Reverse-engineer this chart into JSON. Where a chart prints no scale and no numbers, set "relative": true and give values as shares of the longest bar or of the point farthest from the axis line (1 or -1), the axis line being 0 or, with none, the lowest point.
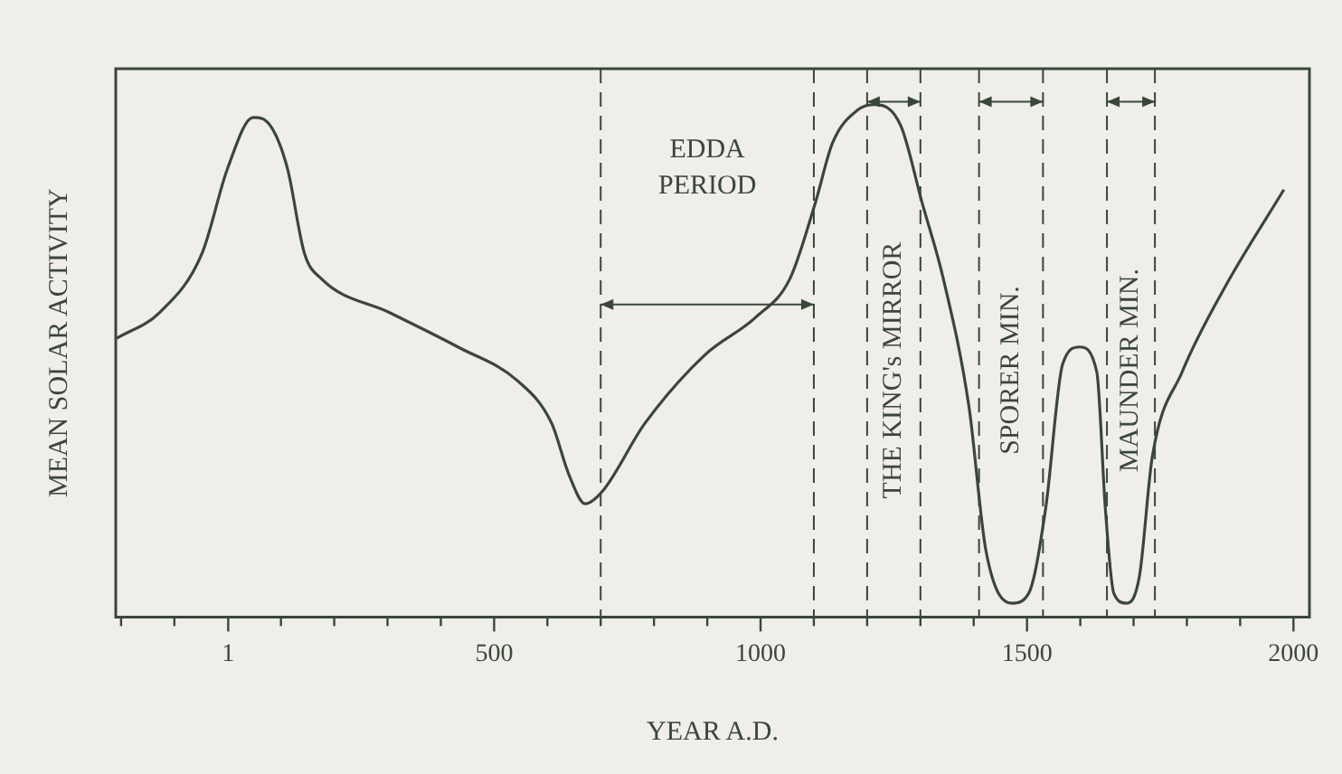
{
  "chart_data": {
    "type": "line",
    "xlabel": "YEAR A.D.",
    "ylabel": "MEAN SOLAR ACTIVITY",
    "relative": true,
    "color": "#3b463b",
    "x": [
      -208,
      -128,
      -48,
      0,
      48,
      80,
      112,
      144,
      176,
      304,
      432,
      544,
      608,
      640,
      671,
      703,
      783,
      895,
      991,
      1055,
      1103,
      1135,
      1183,
      1215,
      1263,
      1303,
      1343,
      1391,
      1423,
      1471,
      1503,
      1535,
      1567,
      1599,
      1631,
      1647,
      1663,
      1687,
      1711,
      1735,
      1791,
      1871,
      1982
    ],
    "values": [
      0.544,
      0.594,
      0.71,
      0.876,
      0.975,
      0.959,
      0.876,
      0.71,
      0.66,
      0.594,
      0.527,
      0.461,
      0.378,
      0.279,
      0.221,
      0.245,
      0.378,
      0.511,
      0.585,
      0.66,
      0.809,
      0.925,
      0.99,
      1.0,
      0.959,
      0.809,
      0.66,
      0.411,
      0.129,
      0.027,
      0.046,
      0.212,
      0.494,
      0.527,
      0.478,
      0.212,
      0.046,
      0.027,
      0.08,
      0.312,
      0.478,
      0.643,
      0.834
    ],
    "xlim": [
      -210,
      2030
    ],
    "xticks": [
      {
        "value": -200,
        "label": null
      },
      {
        "value": -100,
        "label": null
      },
      1,
      {
        "value": 100,
        "label": null
      },
      {
        "value": 200,
        "label": null
      },
      {
        "value": 300,
        "label": null
      },
      {
        "value": 400,
        "label": null
      },
      500,
      {
        "value": 600,
        "label": null
      },
      {
        "value": 700,
        "label": null
      },
      {
        "value": 800,
        "label": null
      },
      {
        "value": 900,
        "label": null
      },
      1000,
      {
        "value": 1100,
        "label": null
      },
      {
        "value": 1200,
        "label": null
      },
      {
        "value": 1300,
        "label": null
      },
      {
        "value": 1400,
        "label": null
      },
      1500,
      {
        "value": 1600,
        "label": null
      },
      {
        "value": 1700,
        "label": null
      },
      {
        "value": 1800,
        "label": null
      },
      {
        "value": 1900,
        "label": null
      },
      2000
    ],
    "ref_lines": [
      {
        "axis": "x",
        "value": 700,
        "line_style": "dashed"
      },
      {
        "axis": "x",
        "value": 1100,
        "line_style": "dashed"
      },
      {
        "axis": "x",
        "value": 1200,
        "line_style": "dashed"
      },
      {
        "axis": "x",
        "value": 1300,
        "line_style": "dashed"
      },
      {
        "axis": "x",
        "value": 1410,
        "line_style": "dashed"
      },
      {
        "axis": "x",
        "value": 1530,
        "line_style": "dashed"
      },
      {
        "axis": "x",
        "value": 1650,
        "line_style": "dashed"
      },
      {
        "axis": "x",
        "value": 1740,
        "line_style": "dashed"
      }
    ],
    "annotations": [
      "EDDA PERIOD",
      "THE KING's MIRROR",
      "SPORER MIN.",
      "MAUNDER MIN."
    ],
    "grid": false,
    "legend": false,
    "marker": "none",
    "line_style": "solid"
  }
}
